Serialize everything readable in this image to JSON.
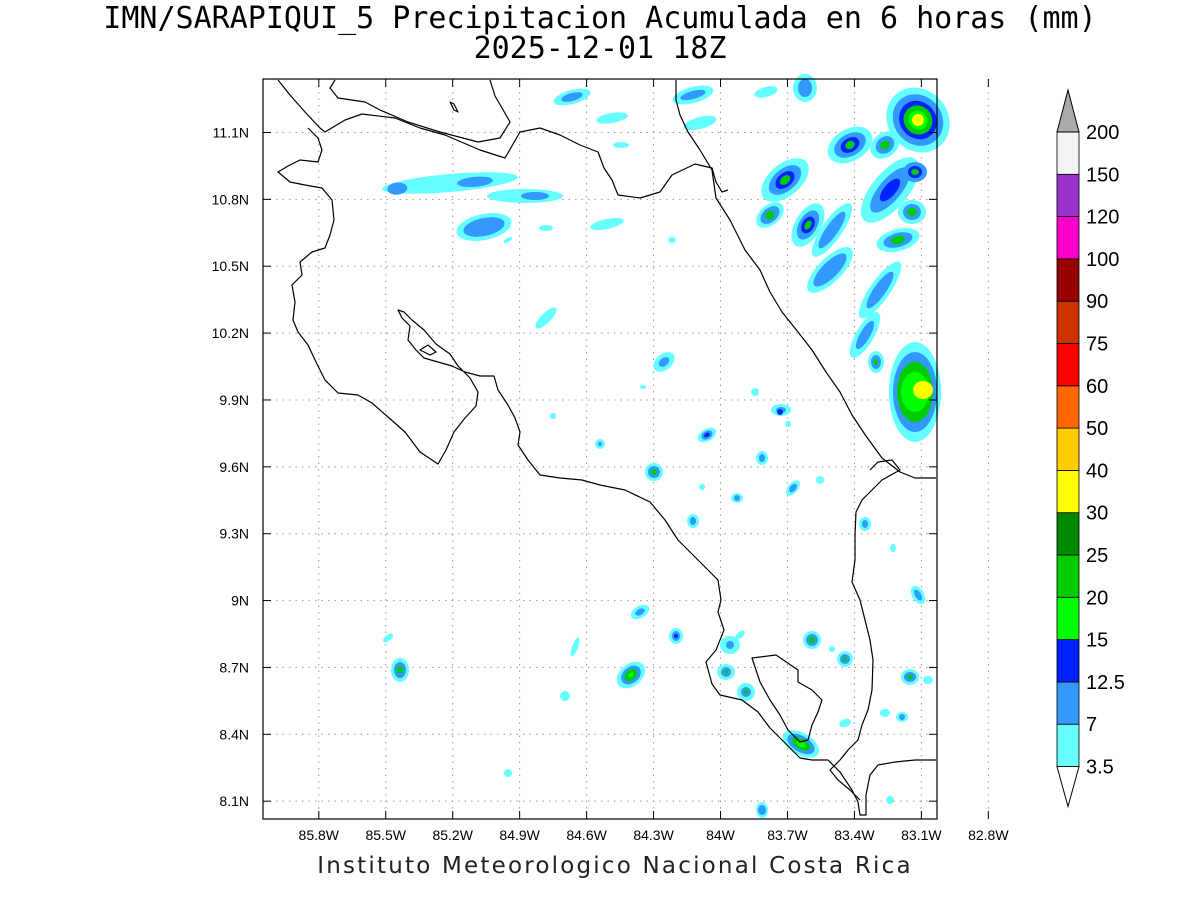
{
  "title": {
    "line1": "IMN/SARAPIQUI_5 Precipitacion Acumulada en 6 horas (mm)",
    "line2": "2025-12-01 18Z"
  },
  "footer": "Instituto Meteorologico Nacional Costa Rica",
  "map": {
    "lon_range": [
      -86.05,
      -83.03
    ],
    "lat_range": [
      8.02,
      11.34
    ],
    "x_ticks": [
      {
        "value": -85.8,
        "label": "85.8W"
      },
      {
        "value": -85.5,
        "label": "85.5W"
      },
      {
        "value": -85.2,
        "label": "85.2W"
      },
      {
        "value": -84.9,
        "label": "84.9W"
      },
      {
        "value": -84.6,
        "label": "84.6W"
      },
      {
        "value": -84.3,
        "label": "84.3W"
      },
      {
        "value": -84.0,
        "label": "84W"
      },
      {
        "value": -83.7,
        "label": "83.7W"
      },
      {
        "value": -83.4,
        "label": "83.4W"
      },
      {
        "value": -83.1,
        "label": "83.1W"
      },
      {
        "value": -82.8,
        "label": "82.8W"
      }
    ],
    "y_ticks": [
      {
        "value": 8.1,
        "label": "8.1N"
      },
      {
        "value": 8.4,
        "label": "8.4N"
      },
      {
        "value": 8.7,
        "label": "8.7N"
      },
      {
        "value": 9.0,
        "label": "9N"
      },
      {
        "value": 9.3,
        "label": "9.3N"
      },
      {
        "value": 9.6,
        "label": "9.6N"
      },
      {
        "value": 9.9,
        "label": "9.9N"
      },
      {
        "value": 10.2,
        "label": "10.2N"
      },
      {
        "value": 10.5,
        "label": "10.5N"
      },
      {
        "value": 10.8,
        "label": "10.8N"
      },
      {
        "value": 11.1,
        "label": "11.1N"
      }
    ],
    "grid": true
  },
  "colorbar": {
    "labels": [
      "3.5",
      "7",
      "12.5",
      "15",
      "20",
      "25",
      "30",
      "40",
      "50",
      "60",
      "75",
      "90",
      "100",
      "120",
      "150",
      "200"
    ],
    "colors": [
      "#ffffff",
      "#66ffff",
      "#3399ff",
      "#0022ff",
      "#00ff00",
      "#00cc00",
      "#008800",
      "#ffff00",
      "#ffcc00",
      "#ff6600",
      "#ff0000",
      "#cc3300",
      "#990000",
      "#ff00cc",
      "#9933cc",
      "#f4f4f4",
      "#aaaaaa"
    ]
  }
}
